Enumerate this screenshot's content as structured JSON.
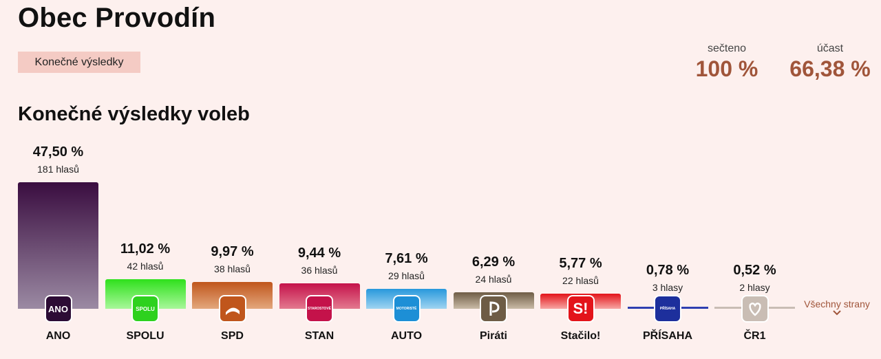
{
  "header": {
    "title": "Obec Provodín",
    "badge": "Konečné výsledky",
    "counted_label": "sečteno",
    "counted_value": "100 %",
    "turnout_label": "účast",
    "turnout_value": "66,38 %"
  },
  "section_title": "Konečné výsledky voleb",
  "all_parties_label": "Všechny strany",
  "chart_data": {
    "type": "bar",
    "categories": [
      "ANO",
      "SPOLU",
      "SPD",
      "STAN",
      "AUTO",
      "Piráti",
      "Stačilo!",
      "PŘÍSAHA",
      "ČR1"
    ],
    "values": [
      47.5,
      11.02,
      9.97,
      9.44,
      7.61,
      6.29,
      5.77,
      0.78,
      0.52
    ],
    "value_labels": [
      "47,50 %",
      "11,02 %",
      "9,97 %",
      "9,44 %",
      "7,61 %",
      "6,29 %",
      "5,77 %",
      "0,78 %",
      "0,52 %"
    ],
    "votes_labels": [
      "181 hlasů",
      "42 hlasů",
      "38 hlasů",
      "36 hlasů",
      "29 hlasů",
      "24 hlasů",
      "22 hlasů",
      "3 hlasy",
      "2 hlasy"
    ],
    "ylim": [
      0,
      47.5
    ],
    "logos": [
      {
        "icon": "ano-logo-icon",
        "text": "ANO",
        "bg": "#2c0c35",
        "color_top": "#3a0d40",
        "color_bottom": "#9b8aa3"
      },
      {
        "icon": "spolu-logo-icon",
        "text": "SPOLU",
        "bg": "#2ed11e",
        "color_top": "#2fe01c",
        "color_bottom": "#a8f79a"
      },
      {
        "icon": "spd-logo-icon",
        "text": "",
        "bg": "#c0561c",
        "color_top": "#c0561c",
        "color_bottom": "#e3a77d"
      },
      {
        "icon": "stan-logo-icon",
        "text": "STAROSTOVÉ",
        "bg": "#c4124a",
        "color_top": "#c4124a",
        "color_bottom": "#e3798f"
      },
      {
        "icon": "motoriste-logo-icon",
        "text": "MOTORISTÉ",
        "bg": "#1d8fd6",
        "color_top": "#2798dc",
        "color_bottom": "#9fd4f1"
      },
      {
        "icon": "pirati-logo-icon",
        "text": "",
        "bg": "#6e5c45",
        "color_top": "#6e5c45",
        "color_bottom": "#cabba7"
      },
      {
        "icon": "stacilo-logo-icon",
        "text": "S!",
        "bg": "#e3141a",
        "color_top": "#e3141a",
        "color_bottom": "#f7a6a3"
      },
      {
        "icon": "prisaha-logo-icon",
        "text": "PŘÍSAHA",
        "bg": "#1d2f9c",
        "color_top": "#2e3fb0",
        "color_bottom": "#2e3fb0"
      },
      {
        "icon": "cr1-logo-icon",
        "text": "",
        "bg": "#c9bdb4",
        "color_top": "#c9bdb4",
        "color_bottom": "#c9bdb4"
      }
    ]
  }
}
